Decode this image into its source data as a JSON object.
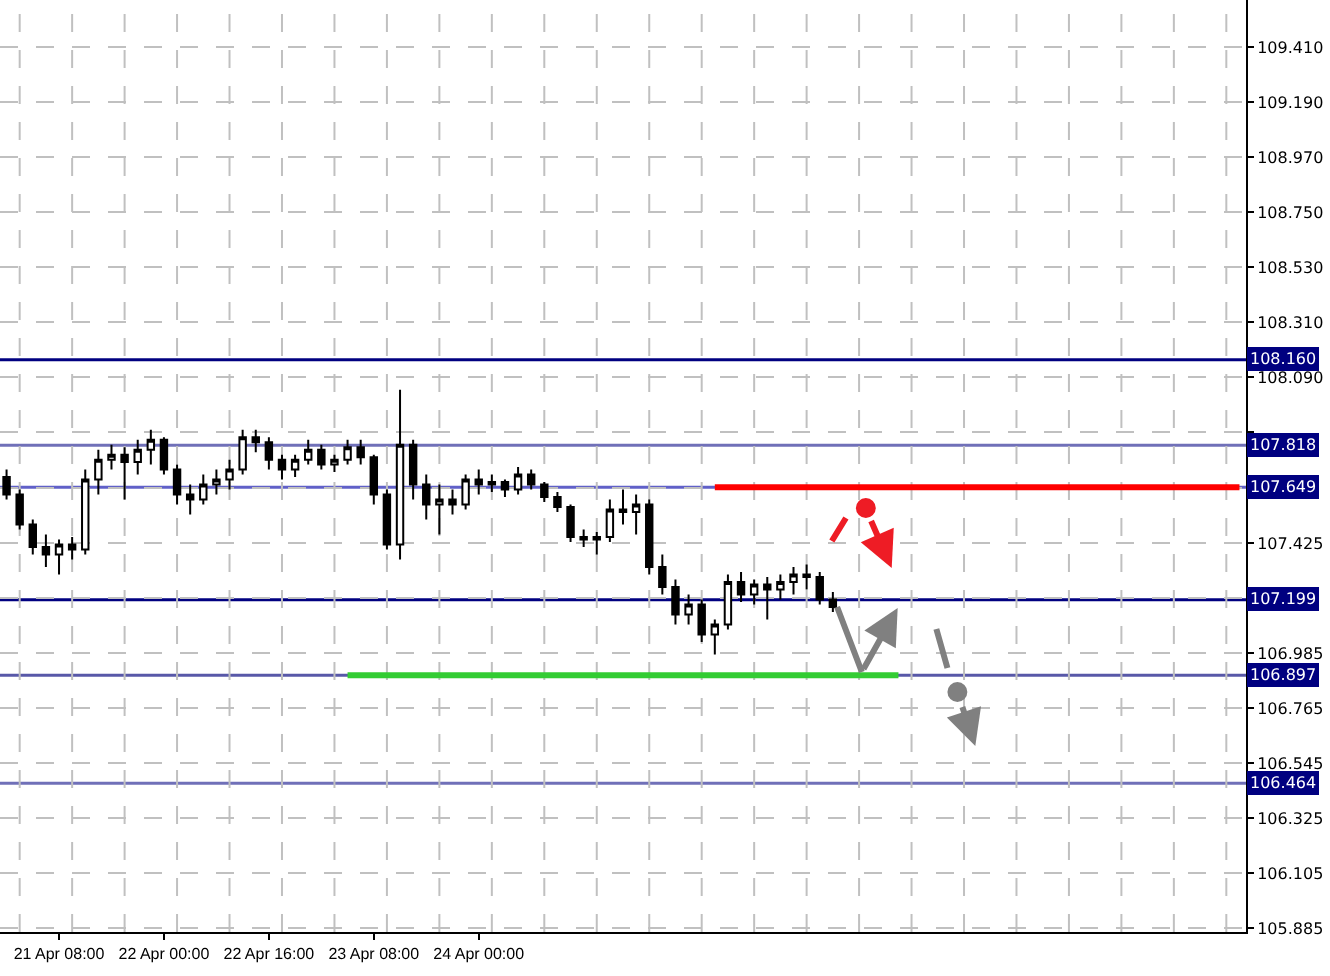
{
  "chart_data": {
    "type": "candlestick",
    "categories": [
      null,
      null,
      null,
      null,
      "21 Apr 08:00",
      null,
      null,
      null,
      null,
      null,
      null,
      null,
      "22 Apr 00:00",
      null,
      null,
      null,
      null,
      null,
      null,
      null,
      "22 Apr 16:00",
      null,
      null,
      null,
      null,
      null,
      null,
      null,
      "23 Apr 08:00",
      null,
      null,
      null,
      null,
      null,
      null,
      null,
      "24 Apr 00:00",
      null,
      null,
      null,
      null,
      null,
      null,
      null,
      null,
      null,
      null,
      null,
      null,
      null,
      null,
      null,
      null,
      null,
      null,
      null,
      null,
      null,
      null,
      null,
      null,
      null,
      null,
      null,
      null,
      null,
      null,
      null,
      null,
      null,
      null,
      null,
      null,
      null,
      null,
      null,
      null,
      null,
      null,
      null,
      null,
      null,
      null,
      null,
      null,
      null,
      null,
      null,
      null,
      null,
      null,
      null,
      null,
      null,
      null
    ],
    "ohlc": [
      [
        107.69,
        107.72,
        107.6,
        107.62
      ],
      [
        107.62,
        107.64,
        107.48,
        107.5
      ],
      [
        107.5,
        107.52,
        107.38,
        107.41
      ],
      [
        107.41,
        107.46,
        107.33,
        107.38
      ],
      [
        107.38,
        107.44,
        107.3,
        107.42
      ],
      [
        107.42,
        107.45,
        107.36,
        107.4
      ],
      [
        107.4,
        107.72,
        107.38,
        107.68
      ],
      [
        107.68,
        107.8,
        107.62,
        107.76
      ],
      [
        107.76,
        107.82,
        107.72,
        107.78
      ],
      [
        107.78,
        107.81,
        107.6,
        107.75
      ],
      [
        107.75,
        107.84,
        107.7,
        107.8
      ],
      [
        107.8,
        107.88,
        107.74,
        107.84
      ],
      [
        107.84,
        107.85,
        107.7,
        107.72
      ],
      [
        107.72,
        107.74,
        107.58,
        107.62
      ],
      [
        107.62,
        107.66,
        107.54,
        107.6
      ],
      [
        107.6,
        107.7,
        107.58,
        107.66
      ],
      [
        107.66,
        107.72,
        107.62,
        107.68
      ],
      [
        107.68,
        107.76,
        107.64,
        107.72
      ],
      [
        107.72,
        107.88,
        107.7,
        107.85
      ],
      [
        107.85,
        107.88,
        107.79,
        107.83
      ],
      [
        107.83,
        107.85,
        107.72,
        107.76
      ],
      [
        107.76,
        107.78,
        107.68,
        107.72
      ],
      [
        107.72,
        107.78,
        107.69,
        107.76
      ],
      [
        107.76,
        107.84,
        107.74,
        107.8
      ],
      [
        107.8,
        107.82,
        107.72,
        107.74
      ],
      [
        107.74,
        107.78,
        107.71,
        107.76
      ],
      [
        107.76,
        107.84,
        107.74,
        107.81
      ],
      [
        107.81,
        107.84,
        107.74,
        107.77
      ],
      [
        107.77,
        107.78,
        107.58,
        107.62
      ],
      [
        107.62,
        107.64,
        107.4,
        107.42
      ],
      [
        107.42,
        108.04,
        107.36,
        107.82
      ],
      [
        107.82,
        107.84,
        107.6,
        107.66
      ],
      [
        107.66,
        107.7,
        107.52,
        107.58
      ],
      [
        107.58,
        107.66,
        107.46,
        107.6
      ],
      [
        107.6,
        107.64,
        107.54,
        107.58
      ],
      [
        107.58,
        107.7,
        107.56,
        107.68
      ],
      [
        107.68,
        107.72,
        107.62,
        107.66
      ],
      [
        107.66,
        107.7,
        107.63,
        107.67
      ],
      [
        107.67,
        107.68,
        107.61,
        107.64
      ],
      [
        107.64,
        107.73,
        107.62,
        107.7
      ],
      [
        107.7,
        107.72,
        107.64,
        107.66
      ],
      [
        107.66,
        107.67,
        107.59,
        107.61
      ],
      [
        107.61,
        107.63,
        107.55,
        107.57
      ],
      [
        107.57,
        107.58,
        107.43,
        107.45
      ],
      [
        107.45,
        107.48,
        107.41,
        107.44
      ],
      [
        107.44,
        107.47,
        107.38,
        107.45
      ],
      [
        107.45,
        107.6,
        107.43,
        107.56
      ],
      [
        107.56,
        107.64,
        107.5,
        107.55
      ],
      [
        107.55,
        107.62,
        107.46,
        107.58
      ],
      [
        107.58,
        107.6,
        107.3,
        107.33
      ],
      [
        107.33,
        107.38,
        107.22,
        107.25
      ],
      [
        107.25,
        107.28,
        107.1,
        107.14
      ],
      [
        107.14,
        107.22,
        107.1,
        107.18
      ],
      [
        107.18,
        107.2,
        107.03,
        107.06
      ],
      [
        107.06,
        107.12,
        106.98,
        107.1
      ],
      [
        107.1,
        107.3,
        107.08,
        107.27
      ],
      [
        107.27,
        107.31,
        107.19,
        107.22
      ],
      [
        107.22,
        107.28,
        107.18,
        107.26
      ],
      [
        107.26,
        107.29,
        107.12,
        107.24
      ],
      [
        107.24,
        107.3,
        107.2,
        107.27
      ],
      [
        107.27,
        107.33,
        107.22,
        107.3
      ],
      [
        107.3,
        107.34,
        107.24,
        107.29
      ],
      [
        107.29,
        107.31,
        107.18,
        107.2
      ],
      [
        107.2,
        107.23,
        107.15,
        107.17
      ],
      null,
      null,
      null,
      null,
      null,
      null,
      null,
      null,
      null,
      null,
      null,
      null,
      null,
      null,
      null,
      null,
      null,
      null,
      null,
      null,
      null,
      null,
      null,
      null,
      null,
      null,
      null,
      null,
      null,
      null,
      null
    ],
    "series": [
      {
        "type": "line",
        "color": "#ff0000",
        "values": [
          null,
          null,
          null,
          null,
          null,
          null,
          null,
          null,
          null,
          null,
          null,
          null,
          null,
          null,
          null,
          null,
          null,
          null,
          null,
          null,
          null,
          null,
          null,
          null,
          null,
          null,
          null,
          null,
          null,
          null,
          null,
          null,
          null,
          null,
          null,
          null,
          null,
          null,
          null,
          null,
          null,
          null,
          null,
          null,
          null,
          null,
          null,
          null,
          null,
          null,
          null,
          null,
          null,
          null,
          107.649,
          107.649,
          107.649,
          107.649,
          107.649,
          107.649,
          107.649,
          107.649,
          107.649,
          107.649,
          107.649,
          107.649,
          107.649,
          107.649,
          107.649,
          107.649,
          107.649,
          107.649,
          107.649,
          107.649,
          107.649,
          107.649,
          107.649,
          107.649,
          107.649,
          107.649,
          107.649,
          107.649,
          107.649,
          107.649,
          107.649,
          107.649,
          107.649,
          107.649,
          107.649,
          107.649,
          107.649,
          107.649,
          107.649,
          107.649,
          107.649
        ]
      },
      {
        "type": "line",
        "color": "#33cc33",
        "values": [
          null,
          null,
          null,
          null,
          null,
          null,
          null,
          null,
          null,
          null,
          null,
          null,
          null,
          null,
          null,
          null,
          null,
          null,
          null,
          null,
          null,
          null,
          null,
          null,
          null,
          null,
          106.897,
          106.897,
          106.897,
          106.897,
          106.897,
          106.897,
          106.897,
          106.897,
          106.897,
          106.897,
          106.897,
          106.897,
          106.897,
          106.897,
          106.897,
          106.897,
          106.897,
          106.897,
          106.897,
          106.897,
          106.897,
          106.897,
          106.897,
          106.897,
          106.897,
          106.897,
          106.897,
          106.897,
          106.897,
          106.897,
          106.897,
          106.897,
          106.897,
          106.897,
          106.897,
          106.897,
          106.897,
          106.897,
          106.897,
          106.897,
          106.897,
          106.897,
          106.897,
          null,
          null,
          null,
          null,
          null,
          null,
          null,
          null,
          null,
          null,
          null,
          null,
          null,
          null,
          null,
          null,
          null,
          null,
          null,
          null,
          null,
          null,
          null,
          null,
          null,
          null
        ]
      }
    ],
    "ref_lines": [
      {
        "axis": "y",
        "value": 108.16,
        "label": "108.160",
        "color": "#000080"
      },
      {
        "axis": "y",
        "value": 107.818,
        "label": "107.818",
        "color": "#7070b8"
      },
      {
        "axis": "y",
        "value": 107.649,
        "label": "107.649",
        "color": "#6060c8"
      },
      {
        "axis": "y",
        "value": 107.199,
        "label": "107.199",
        "color": "#000080"
      },
      {
        "axis": "y",
        "value": 106.897,
        "label": "106.897",
        "color": "#5858a8"
      },
      {
        "axis": "y",
        "value": 106.464,
        "label": "106.464",
        "color": "#7070b8"
      }
    ],
    "ylim": [
      105.869,
      109.6
    ],
    "yticks": [
      {
        "value": 105.885,
        "label": "105.885"
      },
      {
        "value": 106.105,
        "label": "106.105"
      },
      {
        "value": 106.325,
        "label": "106.325"
      },
      {
        "value": 106.545,
        "label": "106.545"
      },
      {
        "value": 106.765,
        "label": "106.765"
      },
      {
        "value": 106.985,
        "label": "106.985"
      },
      {
        "value": 107.205,
        "label": null
      },
      {
        "value": 107.425,
        "label": "107.425"
      },
      {
        "value": 107.645,
        "label": null
      },
      {
        "value": 107.87,
        "label": null
      },
      {
        "value": 108.09,
        "label": "108.090"
      },
      {
        "value": 108.31,
        "label": "108.310"
      },
      {
        "value": 108.53,
        "label": "108.530"
      },
      {
        "value": 108.75,
        "label": "108.750"
      },
      {
        "value": 108.97,
        "label": "108.970"
      },
      {
        "value": 109.19,
        "label": "109.190"
      },
      {
        "value": 109.41,
        "label": "109.410"
      }
    ],
    "grid": true
  }
}
